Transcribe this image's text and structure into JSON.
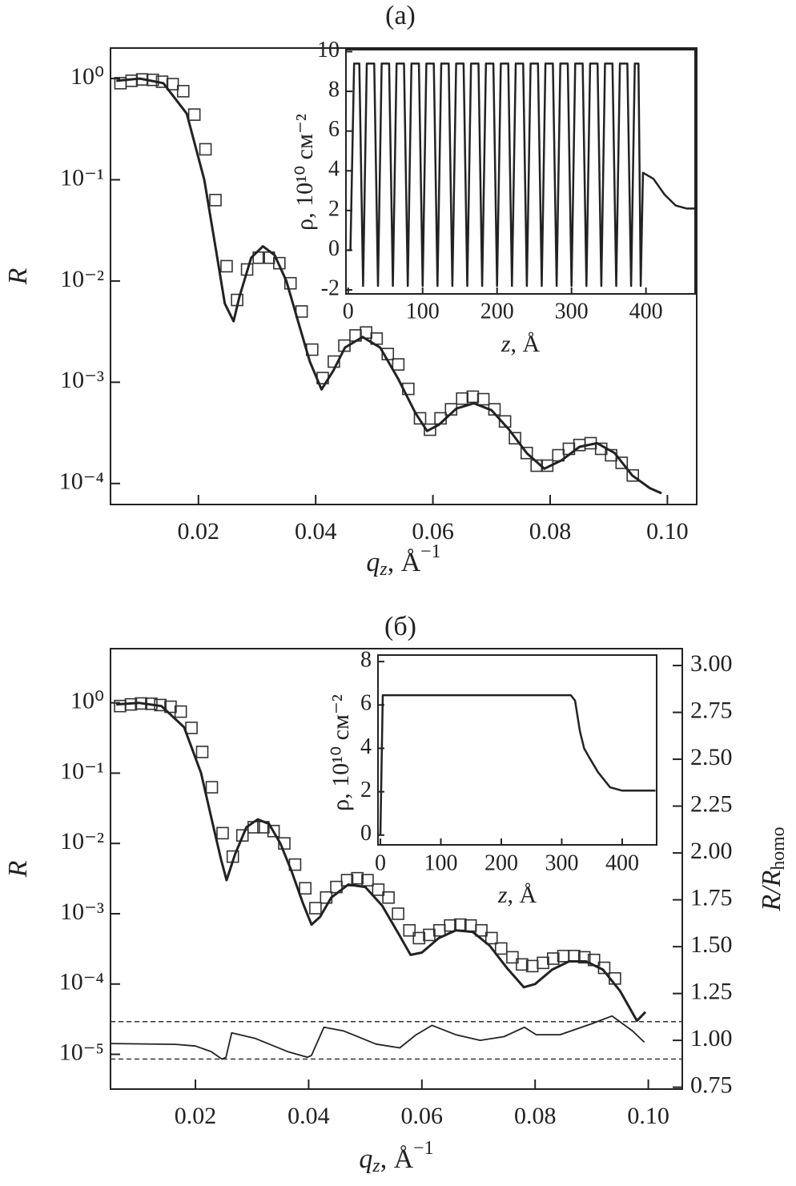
{
  "chart_data": [
    {
      "type": "line",
      "title": "(a)",
      "x_label": [
        "q",
        "z",
        ", Å",
        "−1"
      ],
      "y_label": "R",
      "xlim": [
        0.005,
        0.105
      ],
      "xticks": [
        0.02,
        0.04,
        0.06,
        0.08,
        {
          "value": 0.1,
          "label": "0.10"
        }
      ],
      "log_y": true,
      "ylim": [
        6.2e-05,
        2
      ],
      "yticks": [
        {
          "value": 1,
          "label": "10⁰"
        },
        {
          "value": 0.1,
          "label": "10⁻¹"
        },
        {
          "value": 0.01,
          "label": "10⁻²"
        },
        {
          "value": 0.001,
          "label": "10⁻³"
        },
        {
          "value": 0.0001,
          "label": "10⁻⁴"
        }
      ],
      "series": [
        {
          "marker": "square",
          "color": "#333333",
          "x": [
            0.0067,
            0.0086,
            0.0104,
            0.0122,
            0.0138,
            0.0156,
            0.0174,
            0.0193,
            0.0212,
            0.0229,
            0.0248,
            0.0266,
            0.0283,
            0.0303,
            0.032,
            0.0338,
            0.0357,
            0.0376,
            0.0394,
            0.0412,
            0.0431,
            0.0449,
            0.0468,
            0.0486,
            0.0504,
            0.0523,
            0.0541,
            0.0558,
            0.0578,
            0.0595,
            0.0613,
            0.0631,
            0.065,
            0.0668,
            0.0686,
            0.0705,
            0.0723,
            0.074,
            0.076,
            0.0777,
            0.0795,
            0.0814,
            0.0832,
            0.085,
            0.0869,
            0.0887,
            0.0904,
            0.0922,
            0.0941
          ],
          "values": [
            0.9,
            0.95,
            0.98,
            0.97,
            0.93,
            0.88,
            0.75,
            0.44,
            0.2,
            0.063,
            0.014,
            0.0065,
            0.013,
            0.017,
            0.017,
            0.015,
            0.0095,
            0.005,
            0.0021,
            0.0011,
            0.0016,
            0.0023,
            0.0029,
            0.0031,
            0.0027,
            0.0019,
            0.0015,
            0.00086,
            0.00044,
            0.00034,
            0.00044,
            0.00054,
            0.00069,
            0.00072,
            0.00068,
            0.00054,
            0.00041,
            0.00028,
            0.0002,
            0.00015,
            0.00015,
            0.00019,
            0.00022,
            0.00024,
            0.00025,
            0.00022,
            0.00019,
            0.00016,
            0.00012
          ]
        },
        {
          "color": "#222222",
          "x": [
            0.006,
            0.01,
            0.014,
            0.018,
            0.021,
            0.023,
            0.0245,
            0.026,
            0.027,
            0.029,
            0.031,
            0.033,
            0.035,
            0.037,
            0.039,
            0.041,
            0.043,
            0.045,
            0.048,
            0.051,
            0.054,
            0.057,
            0.059,
            0.061,
            0.064,
            0.067,
            0.07,
            0.073,
            0.076,
            0.079,
            0.082,
            0.085,
            0.088,
            0.091,
            0.094,
            0.097,
            0.099
          ],
          "values": [
            0.95,
            1.0,
            0.9,
            0.45,
            0.1,
            0.02,
            0.006,
            0.004,
            0.007,
            0.017,
            0.022,
            0.018,
            0.01,
            0.004,
            0.0016,
            0.00085,
            0.0013,
            0.0022,
            0.0028,
            0.0022,
            0.0011,
            0.0005,
            0.00033,
            0.00038,
            0.00055,
            0.00062,
            0.00053,
            0.00034,
            0.0002,
            0.00014,
            0.00017,
            0.00023,
            0.00025,
            0.0002,
            0.00012,
            9e-05,
            8e-05
          ]
        }
      ],
      "inset": {
        "type": "line",
        "x_label": [
          "z",
          ", Å"
        ],
        "y_label": "ρ, 10¹⁰ см⁻²",
        "xlim": [
          -3,
          466
        ],
        "xticks": [
          0,
          100,
          200,
          300,
          400
        ],
        "ylim": [
          -2.2,
          10.1
        ],
        "yticks": [
          -2,
          0,
          2,
          4,
          6,
          8,
          10
        ],
        "series": [
          {
            "color": "#222222",
            "x": [
              0,
              3,
              8,
              15,
              20,
              25,
              35,
              40,
              45,
              55,
              60,
              65,
              75,
              80,
              85,
              95,
              100,
              105,
              115,
              120,
              125,
              135,
              140,
              145,
              155,
              160,
              165,
              175,
              180,
              185,
              195,
              200,
              205,
              215,
              220,
              225,
              235,
              240,
              245,
              255,
              260,
              265,
              275,
              280,
              285,
              295,
              300,
              305,
              315,
              320,
              325,
              335,
              340,
              345,
              355,
              360,
              365,
              375,
              380,
              385,
              390,
              393,
              396,
              410,
              425,
              440,
              455,
              466
            ],
            "values": [
              0,
              0,
              9.4,
              9.4,
              -1.8,
              9.4,
              9.4,
              -1.8,
              9.4,
              9.4,
              -1.8,
              9.4,
              9.4,
              -1.8,
              9.4,
              9.4,
              -1.8,
              9.4,
              9.4,
              -1.8,
              9.4,
              9.4,
              -1.8,
              9.4,
              9.4,
              -1.8,
              9.4,
              9.4,
              -1.8,
              9.4,
              9.4,
              -1.8,
              9.4,
              9.4,
              -1.8,
              9.4,
              9.4,
              -1.8,
              9.4,
              9.4,
              -1.8,
              9.4,
              9.4,
              -1.8,
              9.4,
              9.4,
              -1.8,
              9.4,
              9.4,
              -1.8,
              9.4,
              9.4,
              -1.8,
              9.4,
              9.4,
              -1.8,
              9.4,
              9.4,
              -1.8,
              9.4,
              9.4,
              -1.8,
              3.9,
              3.6,
              2.8,
              2.25,
              2.1,
              2.1
            ]
          }
        ]
      }
    },
    {
      "type": "line",
      "title": "(б)",
      "x_label": [
        "q",
        "z",
        ", Å",
        "−1"
      ],
      "y_label": "R",
      "y2_label": [
        "R/R",
        "homo"
      ],
      "xlim": [
        0.005,
        0.106
      ],
      "xticks": [
        0.02,
        0.04,
        0.06,
        0.08,
        {
          "value": 0.1,
          "label": "0.10"
        }
      ],
      "log_y": true,
      "ylim": [
        3.2e-06,
        5.9
      ],
      "yticks": [
        {
          "value": 1,
          "label": "10⁰"
        },
        {
          "value": 0.1,
          "label": "10⁻¹"
        },
        {
          "value": 0.01,
          "label": "10⁻²"
        },
        {
          "value": 0.001,
          "label": "10⁻³"
        },
        {
          "value": 0.0001,
          "label": "10⁻⁴"
        },
        {
          "value": 1e-05,
          "label": "10⁻⁵"
        }
      ],
      "y2lim": [
        0.74,
        3.09
      ],
      "y2ticks": [
        {
          "value": 0.75,
          "label": "0.75"
        },
        {
          "value": 1,
          "label": "1.00"
        },
        {
          "value": 1.25,
          "label": "1.25"
        },
        {
          "value": 1.5,
          "label": "1.50"
        },
        {
          "value": 1.75,
          "label": "1.75"
        },
        {
          "value": 2,
          "label": "2.00"
        },
        {
          "value": 2.25,
          "label": "2.25"
        },
        {
          "value": 2.5,
          "label": "2.50"
        },
        {
          "value": 2.75,
          "label": "2.75"
        },
        {
          "value": 3,
          "label": "3.00"
        }
      ],
      "reference_lines": [
        {
          "axis": "y2",
          "value": 0.9
        },
        {
          "axis": "y2",
          "value": 1.1
        }
      ],
      "series": [
        {
          "marker": "square",
          "color": "#333333",
          "x": [
            0.0067,
            0.0086,
            0.0104,
            0.0122,
            0.0138,
            0.0156,
            0.0174,
            0.0193,
            0.0212,
            0.0229,
            0.0248,
            0.0266,
            0.0283,
            0.0303,
            0.032,
            0.0338,
            0.0357,
            0.0376,
            0.0394,
            0.0412,
            0.0431,
            0.0449,
            0.0468,
            0.0486,
            0.0504,
            0.0523,
            0.0541,
            0.0558,
            0.0578,
            0.0595,
            0.0613,
            0.0631,
            0.065,
            0.0668,
            0.0686,
            0.0705,
            0.0723,
            0.074,
            0.076,
            0.0777,
            0.0795,
            0.0814,
            0.0832,
            0.085,
            0.0869,
            0.0887,
            0.0904,
            0.0922,
            0.0941
          ],
          "values": [
            0.9,
            0.95,
            0.98,
            0.97,
            0.93,
            0.88,
            0.75,
            0.44,
            0.2,
            0.063,
            0.014,
            0.0065,
            0.013,
            0.017,
            0.017,
            0.015,
            0.01,
            0.005,
            0.0023,
            0.0012,
            0.0017,
            0.0024,
            0.003,
            0.0032,
            0.003,
            0.0022,
            0.0017,
            0.001,
            0.00058,
            0.00045,
            0.0005,
            0.00058,
            0.00068,
            0.0007,
            0.00068,
            0.00058,
            0.00045,
            0.00032,
            0.00024,
            0.00019,
            0.00018,
            0.0002,
            0.00023,
            0.00025,
            0.00025,
            0.00024,
            0.00022,
            0.00017,
            0.00012
          ]
        },
        {
          "color": "#222222",
          "x": [
            0.006,
            0.01,
            0.014,
            0.018,
            0.021,
            0.023,
            0.0245,
            0.0255,
            0.027,
            0.029,
            0.031,
            0.033,
            0.035,
            0.037,
            0.039,
            0.0405,
            0.042,
            0.044,
            0.047,
            0.05,
            0.053,
            0.056,
            0.058,
            0.06,
            0.063,
            0.066,
            0.069,
            0.072,
            0.075,
            0.078,
            0.08,
            0.083,
            0.086,
            0.089,
            0.092,
            0.095,
            0.098,
            0.0995
          ],
          "values": [
            0.95,
            1.0,
            0.9,
            0.45,
            0.1,
            0.02,
            0.006,
            0.003,
            0.007,
            0.017,
            0.022,
            0.019,
            0.01,
            0.004,
            0.0014,
            0.0007,
            0.0009,
            0.0017,
            0.0026,
            0.0024,
            0.0013,
            0.0005,
            0.00026,
            0.00028,
            0.00045,
            0.00058,
            0.00055,
            0.00035,
            0.00017,
            9e-05,
            0.0001,
            0.00016,
            0.00021,
            0.00021,
            0.00016,
            8e-05,
            3e-05,
            4e-05
          ]
        },
        {
          "color": "#222222",
          "axis": "y2",
          "x": [
            0.0051,
            0.0165,
            0.02,
            0.0228,
            0.0247,
            0.0254,
            0.0264,
            0.0306,
            0.0363,
            0.0398,
            0.0405,
            0.0427,
            0.0462,
            0.0519,
            0.0561,
            0.059,
            0.0618,
            0.066,
            0.0703,
            0.0745,
            0.0781,
            0.0802,
            0.0844,
            0.0901,
            0.0936,
            0.0972,
            0.0993
          ],
          "values": [
            0.983,
            0.979,
            0.97,
            0.94,
            0.9,
            0.91,
            1.04,
            1.01,
            0.94,
            0.91,
            0.92,
            1.07,
            1.05,
            0.98,
            0.96,
            1.03,
            1.08,
            1.03,
            1.0,
            1.02,
            1.07,
            1.03,
            1.03,
            1.09,
            1.13,
            1.05,
            0.99
          ]
        }
      ],
      "inset": {
        "type": "line",
        "x_label": [
          "z",
          ", Å"
        ],
        "y_label": "ρ, 10¹⁰ см⁻²",
        "xlim": [
          -4,
          457
        ],
        "xticks": [
          0,
          100,
          200,
          300,
          400
        ],
        "ylim": [
          -0.45,
          8.3
        ],
        "yticks": [
          0,
          2,
          4,
          6,
          8
        ],
        "series": [
          {
            "color": "#222222",
            "x": [
              0,
              4,
              315,
              322,
              330,
              337,
              345,
              360,
              380,
              400,
              455
            ],
            "values": [
              0,
              6.45,
              6.45,
              6.2,
              4.8,
              4.0,
              3.6,
              2.9,
              2.2,
              2.05,
              2.05
            ]
          }
        ]
      }
    }
  ]
}
